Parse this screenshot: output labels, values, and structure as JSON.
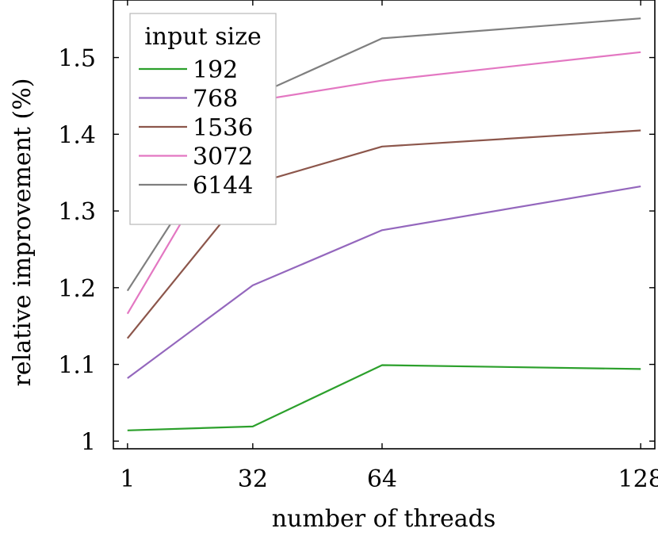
{
  "chart_data": {
    "type": "line",
    "title": "",
    "xlabel": "number of threads",
    "ylabel": "relative improvement (%)",
    "x": [
      1,
      32,
      64,
      128
    ],
    "x_ticks": [
      1,
      32,
      64,
      128
    ],
    "x_tick_labels": [
      "1",
      "32",
      "64",
      "128"
    ],
    "xlim": [
      -2.5,
      131.5
    ],
    "y_ticks": [
      1.0,
      1.1,
      1.2,
      1.3,
      1.4,
      1.5
    ],
    "y_tick_labels": [
      "1",
      "1.1",
      "1.2",
      "1.3",
      "1.4",
      "1.5"
    ],
    "ylim": [
      0.99,
      1.575
    ],
    "grid": false,
    "legend": {
      "title": "input size",
      "position": "top-left"
    },
    "series": [
      {
        "name": "192",
        "color": "#2ca02c",
        "values": [
          1.014,
          1.019,
          1.099,
          1.094
        ]
      },
      {
        "name": "768",
        "color": "#9467bd",
        "values": [
          1.082,
          1.203,
          1.275,
          1.332
        ]
      },
      {
        "name": "1536",
        "color": "#8c564b",
        "values": [
          1.134,
          1.335,
          1.384,
          1.405
        ]
      },
      {
        "name": "3072",
        "color": "#e377c2",
        "values": [
          1.166,
          1.443,
          1.47,
          1.507
        ]
      },
      {
        "name": "6144",
        "color": "#7f7f7f",
        "values": [
          1.196,
          1.449,
          1.525,
          1.551
        ]
      }
    ]
  }
}
